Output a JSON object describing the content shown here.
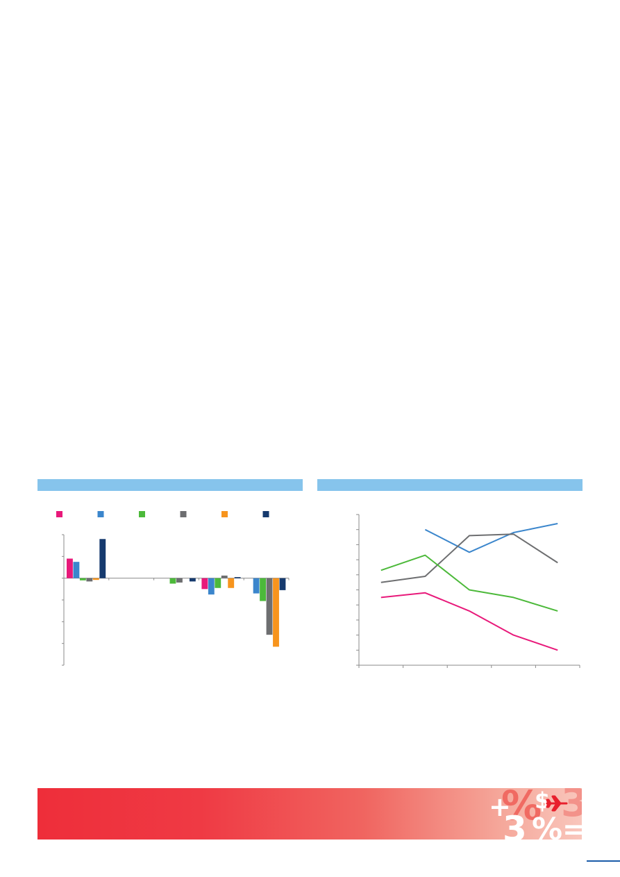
{
  "chart_data": [
    {
      "type": "bar",
      "title": "",
      "categories": [
        "",
        "",
        "",
        "",
        ""
      ],
      "series": [
        {
          "color": "#e8197a",
          "values": [
            0.9,
            0.0,
            0.0,
            -0.5,
            0.0
          ]
        },
        {
          "color": "#3b86cc",
          "values": [
            0.75,
            0.0,
            0.0,
            -0.75,
            -0.7
          ]
        },
        {
          "color": "#4cb93a",
          "values": [
            -0.1,
            0.0,
            -0.25,
            -0.45,
            -1.05
          ]
        },
        {
          "color": "#6d6e70",
          "values": [
            -0.15,
            0.0,
            -0.2,
            0.12,
            -2.6
          ]
        },
        {
          "color": "#f7941d",
          "values": [
            -0.08,
            0.0,
            0.0,
            -0.45,
            -3.15
          ]
        },
        {
          "color": "#163a6e",
          "values": [
            1.8,
            0.0,
            -0.15,
            0.05,
            -0.55
          ]
        }
      ],
      "ylim": [
        -4,
        2
      ],
      "yticks": [
        2,
        1,
        0,
        -1,
        -2,
        -3,
        -4
      ],
      "xlabel": "",
      "ylabel": "",
      "legend": "top",
      "grid": false
    },
    {
      "type": "line",
      "title": "",
      "x": [
        1,
        2,
        3,
        4,
        5
      ],
      "series": [
        {
          "color": "#3b86cc",
          "values": [
            null,
            9.0,
            7.5,
            8.8,
            9.4
          ]
        },
        {
          "color": "#6d6e70",
          "values": [
            5.5,
            5.9,
            8.6,
            8.7,
            6.8
          ]
        },
        {
          "color": "#4cb93a",
          "values": [
            6.3,
            7.3,
            5.0,
            4.5,
            3.6
          ]
        },
        {
          "color": "#e8197a",
          "values": [
            4.5,
            4.8,
            3.6,
            2.0,
            1.0
          ]
        }
      ],
      "ylim": [
        0,
        10
      ],
      "xlim": [
        0.5,
        5.5
      ],
      "xlabel": "",
      "ylabel": "",
      "grid": false
    }
  ],
  "banner": {
    "glyphs": [
      "+",
      "%",
      "$",
      "3",
      "3",
      "%",
      "="
    ],
    "icon": "airplane-icon",
    "color_start": "#ee2e3a",
    "color_end": "#f9c6bc"
  },
  "colors": {
    "header_bar": "#86c4ec",
    "page_rule": "#1a5aa8"
  }
}
